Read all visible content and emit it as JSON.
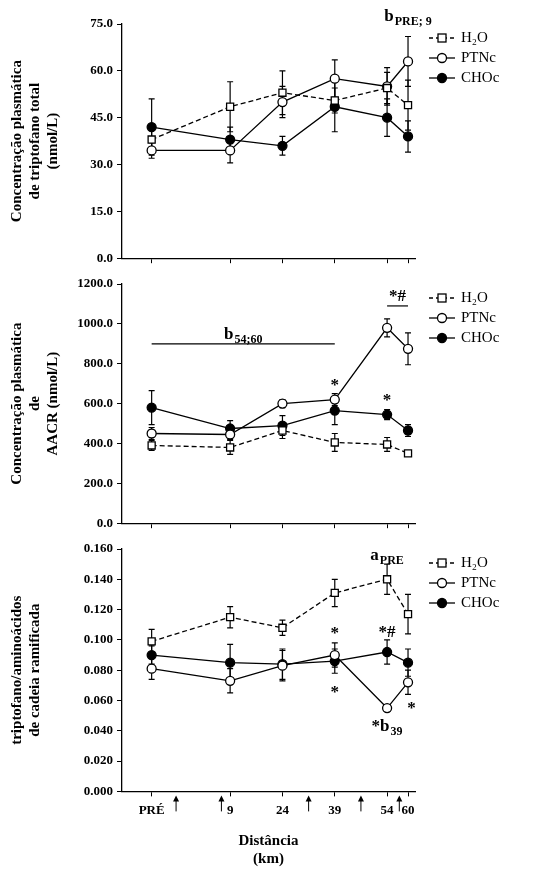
{
  "chart_data": [
    {
      "type": "line",
      "y_label": [
        "Concentração plasmática",
        "de triptofano total",
        "(nmol/L)"
      ],
      "x": [
        -13.5,
        9,
        24,
        39,
        54,
        60
      ],
      "xlim": [
        -22,
        62
      ],
      "xticks": [
        {
          "value": -13.5,
          "label": "PRÉ"
        },
        9,
        24,
        39,
        54,
        60
      ],
      "ylim": [
        0,
        75
      ],
      "yticks": [
        {
          "value": 0,
          "label": "0.0"
        },
        {
          "value": 15,
          "label": "15.0"
        },
        {
          "value": 30,
          "label": "30.0"
        },
        {
          "value": 45,
          "label": "45.0"
        },
        {
          "value": 60,
          "label": "60.0"
        },
        {
          "value": 75,
          "label": "75.0"
        }
      ],
      "grid": false,
      "legend": "right",
      "tick_labels": "y",
      "series": [
        {
          "name": "H₂O",
          "color": "#000000",
          "marker": "square_open",
          "line_style": "dashed",
          "values": [
            38,
            48.5,
            53,
            50.5,
            54.5,
            49
          ],
          "errors": [
            4,
            8,
            7,
            4,
            5,
            8
          ]
        },
        {
          "name": "PTNc",
          "color": "#000000",
          "marker": "circle_open",
          "line_style": "solid",
          "values": [
            34.5,
            34.5,
            50,
            57.5,
            55,
            63
          ],
          "errors": [
            2.5,
            4,
            5,
            6,
            6,
            8
          ]
        },
        {
          "name": "CHOc",
          "color": "#000000",
          "marker": "circle",
          "line_style": "solid",
          "values": [
            42,
            38,
            36,
            48.5,
            45,
            39
          ],
          "errors": [
            9,
            4,
            3,
            8,
            6,
            5
          ]
        }
      ],
      "annotations": [
        {
          "text": "b",
          "sub": "PRE; 9",
          "x": 60,
          "y": 76
        }
      ]
    },
    {
      "type": "line",
      "y_label": [
        "Concentração plasmática",
        "de",
        "AACR (nmol/L)"
      ],
      "x": [
        -13.5,
        9,
        24,
        39,
        54,
        60
      ],
      "xlim": [
        -22,
        62
      ],
      "xticks": [
        {
          "value": -13.5,
          "label": "PRÉ"
        },
        9,
        24,
        39,
        54,
        60
      ],
      "ylim": [
        0,
        1200
      ],
      "yticks": [
        {
          "value": 0,
          "label": "0.0"
        },
        {
          "value": 200,
          "label": "200.0"
        },
        {
          "value": 400,
          "label": "400.0"
        },
        {
          "value": 600,
          "label": "600.0"
        },
        {
          "value": 800,
          "label": "800.0"
        },
        {
          "value": 1000,
          "label": "1000.0"
        },
        {
          "value": 1200,
          "label": "1200.0"
        }
      ],
      "grid": false,
      "legend": "right",
      "tick_labels": "y",
      "series": [
        {
          "name": "H₂O",
          "color": "#000000",
          "marker": "square_open",
          "line_style": "dashed",
          "values": [
            390,
            380,
            465,
            405,
            395,
            350
          ],
          "errors": [
            25,
            35,
            40,
            45,
            35,
            10
          ]
        },
        {
          "name": "PTNc",
          "color": "#000000",
          "marker": "circle_open",
          "line_style": "solid",
          "values": [
            450,
            445,
            600,
            620,
            980,
            875
          ],
          "errors": [
            30,
            25,
            20,
            30,
            45,
            80
          ]
        },
        {
          "name": "CHOc",
          "color": "#000000",
          "marker": "circle",
          "line_style": "solid",
          "values": [
            580,
            475,
            490,
            565,
            545,
            465
          ],
          "errors": [
            85,
            40,
            50,
            70,
            25,
            30
          ]
        }
      ],
      "annotations": [
        {
          "text": "b",
          "sub": "54;60",
          "x": -13.5,
          "x_to": 39,
          "y": 900
        },
        {
          "text": "*#",
          "x": 54,
          "x_to": 60,
          "y": 1090
        },
        {
          "text": "*",
          "x": 39,
          "y": 670
        },
        {
          "text": "*",
          "x": 54,
          "y": 595
        }
      ]
    },
    {
      "type": "line",
      "y_label": [
        "triptofano/aminoácidos",
        "de cadeia ramificada"
      ],
      "x_label": [
        "Distância",
        "(km)"
      ],
      "x": [
        -13.5,
        9,
        24,
        39,
        54,
        60
      ],
      "xlim": [
        -22,
        62
      ],
      "xticks": [
        {
          "value": -13.5,
          "label": "PRÉ"
        },
        9,
        24,
        39,
        54,
        60
      ],
      "ylim": [
        0,
        0.16
      ],
      "yticks": [
        {
          "value": 0,
          "label": "0.000"
        },
        {
          "value": 0.02,
          "label": "0.020"
        },
        {
          "value": 0.04,
          "label": "0.040"
        },
        {
          "value": 0.06,
          "label": "0.060"
        },
        {
          "value": 0.08,
          "label": "0.080"
        },
        {
          "value": 0.1,
          "label": "0.100"
        },
        {
          "value": 0.12,
          "label": "0.120"
        },
        {
          "value": 0.14,
          "label": "0.140"
        },
        {
          "value": 0.16,
          "label": "0.160"
        }
      ],
      "grid": false,
      "legend": "right",
      "tick_labels": true,
      "series": [
        {
          "name": "H₂O",
          "color": "#000000",
          "marker": "square_open",
          "line_style": "dashed",
          "values": [
            0.099,
            0.115,
            0.108,
            0.131,
            0.14,
            0.117
          ],
          "errors": [
            0.008,
            0.007,
            0.005,
            0.009,
            0.01,
            0.013
          ]
        },
        {
          "name": "PTNc",
          "color": "#000000",
          "marker": "circle_open",
          "line_style": "solid",
          "values": [
            0.081,
            0.073,
            0.083,
            0.09,
            0.055,
            0.072
          ],
          "errors": [
            0.007,
            0.008,
            0.01,
            0.008,
            0.002,
            0.008
          ]
        },
        {
          "name": "CHOc",
          "color": "#000000",
          "marker": "circle",
          "line_style": "solid",
          "values": [
            0.09,
            0.085,
            0.084,
            0.086,
            0.092,
            0.085
          ],
          "errors": [
            0.006,
            0.012,
            0.01,
            0.008,
            0.008,
            0.009
          ]
        }
      ],
      "annotations": [
        {
          "text": "a",
          "sub": "PRE",
          "x": 54,
          "y": 0.153
        },
        {
          "text": "*",
          "x": 39,
          "y": 0.101
        },
        {
          "text": "*",
          "x": 39,
          "y": 0.062
        },
        {
          "text": "*#",
          "x": 54,
          "y": 0.102
        },
        {
          "text": "*b",
          "sub": "39",
          "x": 54,
          "y": 0.04
        },
        {
          "text": "*",
          "x": 61,
          "y": 0.052
        }
      ],
      "arrows_x": [
        -6.5,
        6.5,
        31.5,
        46.5,
        57.5
      ]
    }
  ]
}
